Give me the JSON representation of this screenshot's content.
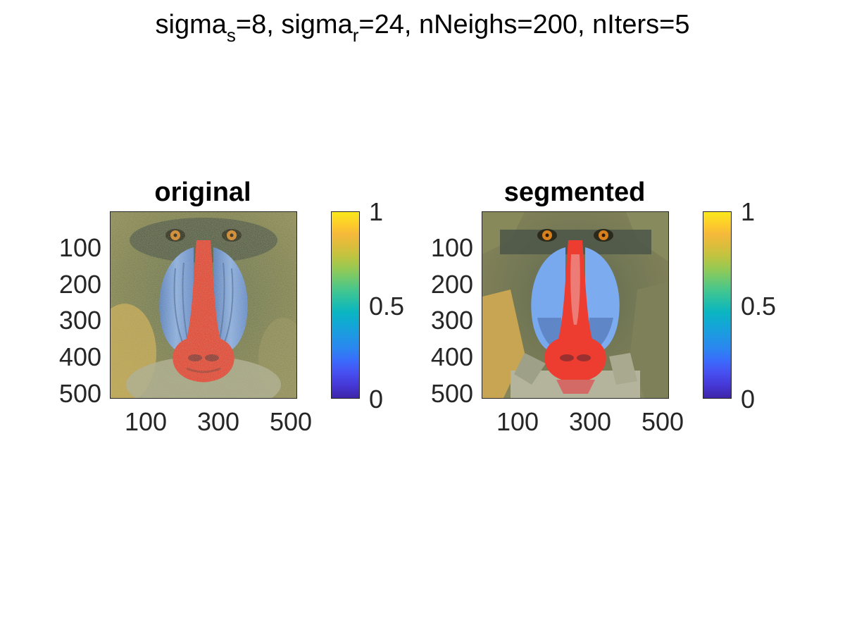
{
  "figure": {
    "title_main": "sigma",
    "title_sub1": "s",
    "title_mid": "=8, sigma",
    "title_sub2": "r",
    "title_rest": "=24, nNeighs=200, nIters=5"
  },
  "panels": [
    {
      "title": "original",
      "y_ticks": [
        "100",
        "200",
        "300",
        "400",
        "500"
      ],
      "x_ticks": [
        "100",
        "300",
        "500"
      ],
      "colorbar_ticks": [
        "1",
        "0.5",
        "0"
      ],
      "colorbar_range": [
        0,
        1
      ]
    },
    {
      "title": "segmented",
      "y_ticks": [
        "100",
        "200",
        "300",
        "400",
        "500"
      ],
      "x_ticks": [
        "100",
        "300",
        "500"
      ],
      "colorbar_ticks": [
        "1",
        "0.5",
        "0"
      ],
      "colorbar_range": [
        0,
        1
      ]
    }
  ],
  "colors": {
    "nose_red": "#ea3a2e",
    "cheek_blue": "#6f9be4",
    "fur_green": "#7c7e4a",
    "eye_orange": "#d6801e"
  }
}
